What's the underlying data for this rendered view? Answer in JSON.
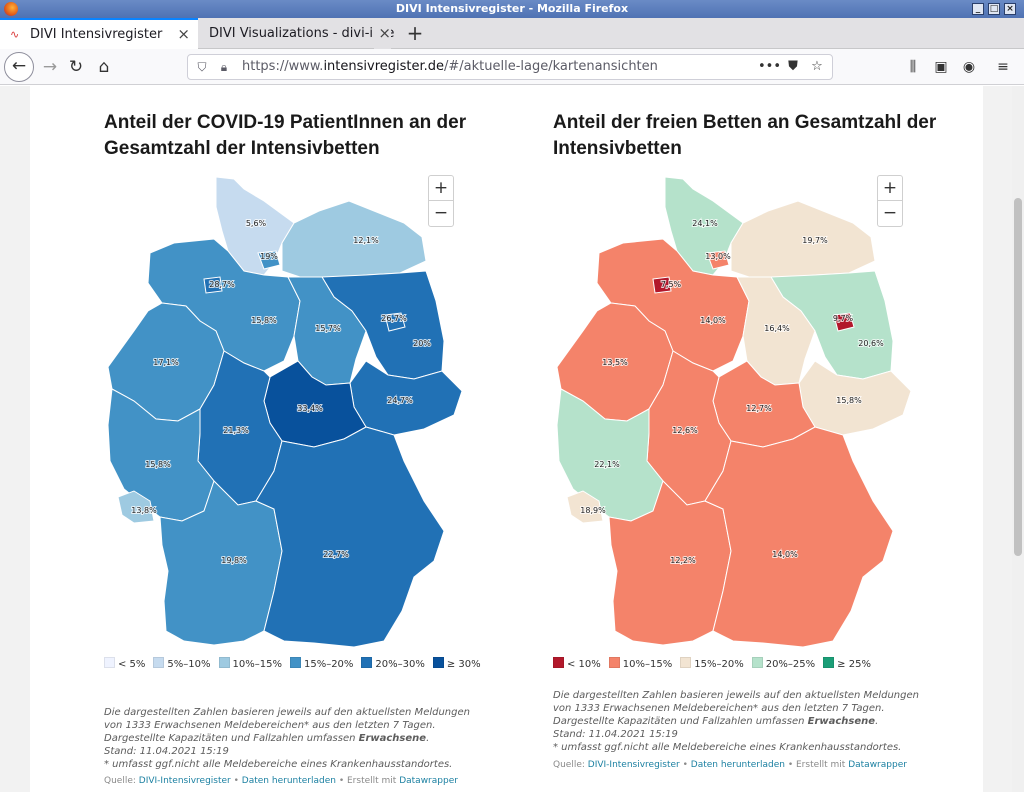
{
  "window": {
    "title": "DIVI Intensivregister - Mozilla Firefox"
  },
  "tabs": [
    {
      "label": "DIVI Intensivregister",
      "active": true
    },
    {
      "label": "DIVI Visualizations - divi-inte",
      "active": false
    }
  ],
  "navbar": {
    "url_prefix": "https://www.",
    "url_host": "intensivregister.de",
    "url_path": "/#/aktuelle-lage/kartenansichten"
  },
  "left_chart": {
    "title": "Anteil der COVID-19 PatientInnen an der Gesamtzahl der Intensivbetten",
    "legend": [
      {
        "label": "< 5%",
        "color": "#eff3ff"
      },
      {
        "label": "5%–10%",
        "color": "#c6dbef"
      },
      {
        "label": "10%–15%",
        "color": "#9ecae1"
      },
      {
        "label": "15%–20%",
        "color": "#4292c6"
      },
      {
        "label": "20%–30%",
        "color": "#2171b5"
      },
      {
        "label": "≥ 30%",
        "color": "#08519c"
      }
    ],
    "notes": [
      "Die dargestellten Zahlen basieren jeweils auf den aktuellsten Meldungen von 1333 Erwachsenen Meldebereichen* aus den letzten 7 Tagen. Dargestellte Kapazitäten und Fallzahlen umfassen ",
      "Erwachsene",
      ".",
      "Stand: 11.04.2021 15:19",
      "* umfasst ggf.nicht alle Meldebereiche eines Krankenhausstandortes."
    ],
    "source": {
      "prefix": "Quelle: ",
      "link1": "DIVI-Intensivregister",
      "sep": " • ",
      "link2": "Daten herunterladen",
      "sep2": " • Erstellt mit ",
      "link3": "Datawrapper"
    }
  },
  "right_chart": {
    "title": "Anteil der freien Betten an Gesamtzahl der Intensivbetten",
    "legend": [
      {
        "label": "< 10%",
        "color": "#b2182b"
      },
      {
        "label": "10%–15%",
        "color": "#f4836a"
      },
      {
        "label": "15%–20%",
        "color": "#f2e4d2"
      },
      {
        "label": "20%–25%",
        "color": "#b5e2cb"
      },
      {
        "label": "≥ 25%",
        "color": "#1b9e77"
      }
    ],
    "notes": [
      "Die dargestellten Zahlen basieren jeweils auf den aktuellsten Meldungen von 1333 Erwachsenen Meldebereichen* aus den letzten 7 Tagen. Dargestellte Kapazitäten und Fallzahlen umfassen ",
      "Erwachsene",
      ".",
      "Stand: 11.04.2021 15:19",
      "* umfasst ggf.nicht alle Meldebereiche eines Krankenhausstandortes."
    ],
    "source": {
      "prefix": "Quelle: ",
      "link1": "DIVI-Intensivregister",
      "sep": " • ",
      "link2": "Daten herunterladen",
      "sep2": " • Erstellt mit ",
      "link3": "Datawrapper"
    }
  },
  "chart_data": [
    {
      "type": "choropleth",
      "title": "Anteil der COVID-19 PatientInnen an der Gesamtzahl der Intensivbetten",
      "regions": [
        {
          "name": "Schleswig-Holstein",
          "value": 5.6,
          "label": "5,6%",
          "color": "#c6dbef"
        },
        {
          "name": "Mecklenburg-Vorpommern",
          "value": 12.1,
          "label": "12,1%",
          "color": "#9ecae1"
        },
        {
          "name": "Hamburg",
          "value": 19,
          "label": "19%",
          "color": "#4292c6"
        },
        {
          "name": "Bremen",
          "value": 28.7,
          "label": "28,7%",
          "color": "#2171b5"
        },
        {
          "name": "Niedersachsen",
          "value": 15.8,
          "label": "15,8%",
          "color": "#4292c6"
        },
        {
          "name": "Berlin",
          "value": 26.7,
          "label": "26,7%",
          "color": "#2171b5"
        },
        {
          "name": "Brandenburg",
          "value": 20,
          "label": "20%",
          "color": "#2171b5"
        },
        {
          "name": "Sachsen-Anhalt",
          "value": 15.7,
          "label": "15,7%",
          "color": "#4292c6"
        },
        {
          "name": "Nordrhein-Westfalen",
          "value": 17.1,
          "label": "17,1%",
          "color": "#4292c6"
        },
        {
          "name": "Sachsen",
          "value": 24.7,
          "label": "24,7%",
          "color": "#2171b5"
        },
        {
          "name": "Thüringen",
          "value": 33.4,
          "label": "33,4%",
          "color": "#08519c"
        },
        {
          "name": "Hessen",
          "value": 21.3,
          "label": "21,3%",
          "color": "#2171b5"
        },
        {
          "name": "Rheinland-Pfalz",
          "value": 15.8,
          "label": "15,8%",
          "color": "#4292c6"
        },
        {
          "name": "Saarland",
          "value": 13.8,
          "label": "13,8%",
          "color": "#9ecae1"
        },
        {
          "name": "Baden-Württemberg",
          "value": 19.8,
          "label": "19,8%",
          "color": "#4292c6"
        },
        {
          "name": "Bayern",
          "value": 22.7,
          "label": "22,7%",
          "color": "#2171b5"
        }
      ]
    },
    {
      "type": "choropleth",
      "title": "Anteil der freien Betten an Gesamtzahl der Intensivbetten",
      "regions": [
        {
          "name": "Schleswig-Holstein",
          "value": 24.1,
          "label": "24,1%",
          "color": "#b5e2cb"
        },
        {
          "name": "Mecklenburg-Vorpommern",
          "value": 19.7,
          "label": "19,7%",
          "color": "#f2e4d2"
        },
        {
          "name": "Hamburg",
          "value": 13.0,
          "label": "13,0%",
          "color": "#f4836a"
        },
        {
          "name": "Bremen",
          "value": 7.5,
          "label": "7,5%",
          "color": "#b2182b"
        },
        {
          "name": "Niedersachsen",
          "value": 14.0,
          "label": "14,0%",
          "color": "#f4836a"
        },
        {
          "name": "Berlin",
          "value": 9.7,
          "label": "9,7%",
          "color": "#b2182b"
        },
        {
          "name": "Brandenburg",
          "value": 20.6,
          "label": "20,6%",
          "color": "#b5e2cb"
        },
        {
          "name": "Sachsen-Anhalt",
          "value": 16.4,
          "label": "16,4%",
          "color": "#f2e4d2"
        },
        {
          "name": "Nordrhein-Westfalen",
          "value": 13.5,
          "label": "13,5%",
          "color": "#f4836a"
        },
        {
          "name": "Sachsen",
          "value": 15.8,
          "label": "15,8%",
          "color": "#f2e4d2"
        },
        {
          "name": "Thüringen",
          "value": 12.7,
          "label": "12,7%",
          "color": "#f4836a"
        },
        {
          "name": "Hessen",
          "value": 12.6,
          "label": "12,6%",
          "color": "#f4836a"
        },
        {
          "name": "Rheinland-Pfalz",
          "value": 22.1,
          "label": "22,1%",
          "color": "#b5e2cb"
        },
        {
          "name": "Saarland",
          "value": 18.9,
          "label": "18,9%",
          "color": "#f2e4d2"
        },
        {
          "name": "Baden-Württemberg",
          "value": 12.2,
          "label": "12,2%",
          "color": "#f4836a"
        },
        {
          "name": "Bayern",
          "value": 14.0,
          "label": "14,0%",
          "color": "#f4836a"
        }
      ]
    }
  ]
}
